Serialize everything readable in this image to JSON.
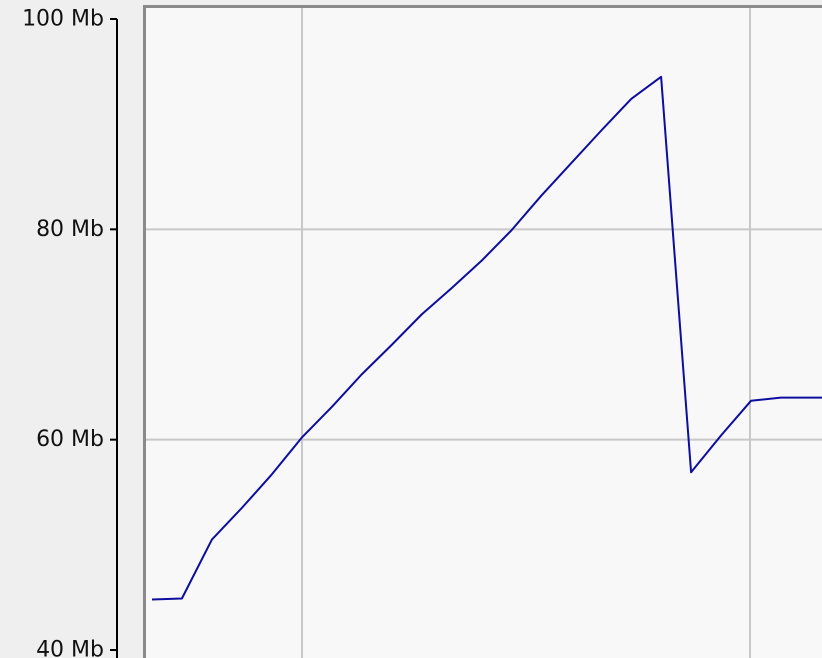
{
  "chart_data": {
    "type": "line",
    "title": "",
    "xlabel": "",
    "ylabel": "",
    "ylim": [
      40,
      100
    ],
    "y_ticks": [
      {
        "value": 40,
        "label": "40 Mb"
      },
      {
        "value": 60,
        "label": "60 Mb"
      },
      {
        "value": 80,
        "label": "80 Mb"
      },
      {
        "value": 100,
        "label": "100 Mb"
      }
    ],
    "grid": true,
    "series": [
      {
        "color": "#0d0d9e",
        "values": [
          44.8,
          44.9,
          50.5,
          53.5,
          56.7,
          60.2,
          63.1,
          66.2,
          69.0,
          71.9,
          74.4,
          77.0,
          79.9,
          83.2,
          86.3,
          89.4,
          92.4,
          94.5,
          56.9,
          60.4,
          63.7,
          64.0,
          64.0,
          64.0,
          64.0
        ]
      }
    ]
  },
  "colors": {
    "plot_background": "#f8f8f8",
    "gridline": "#c8c8c8",
    "axis": "#000000",
    "frame": "#9a9a9a"
  }
}
